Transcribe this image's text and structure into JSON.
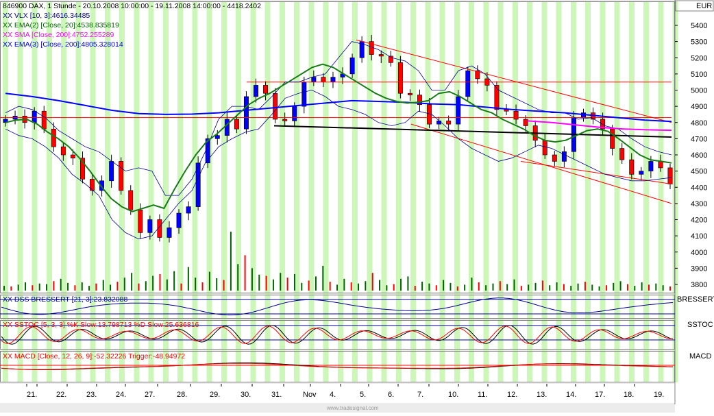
{
  "chart_data": {
    "type": "candlestick",
    "header": "846900  DAX, 1 Stunde - 20.10.2008 10:00:00 - 19.11.2008 14:00:00 - 4418.2402",
    "currency": "EUR",
    "ylim": [
      3750,
      5500
    ],
    "y_ticks": [
      5400,
      5300,
      5200,
      5100,
      5000,
      4900,
      4800,
      4700,
      4600,
      4500,
      4400,
      4300,
      4200,
      4100,
      4000,
      3900,
      3800
    ],
    "x_labels": [
      "21.",
      "22.",
      "23.",
      "24.",
      "27.",
      "28.",
      "29.",
      "30.",
      "31.",
      "Nov",
      "4.",
      "5.",
      "6.",
      "7.",
      "10.",
      "11.",
      "12.",
      "13.",
      "14.",
      "17.",
      "18.",
      "19."
    ],
    "legend": [
      {
        "text": "XX VLX [10, 3]:4616.34485",
        "color": "#00008b"
      },
      {
        "text": "XX EMA(2) [Close, 20]:4538.835819",
        "color": "#006400"
      },
      {
        "text": "XX SMA [Close, 200]:4752.255289",
        "color": "#ff00ff"
      },
      {
        "text": "XX EMA(3) [Close, 200]:4805.328014",
        "color": "#0000ff"
      }
    ],
    "closes": [
      4820,
      4840,
      4800,
      4870,
      4760,
      4650,
      4600,
      4580,
      4450,
      4380,
      4440,
      4560,
      4380,
      4260,
      4120,
      4200,
      4090,
      4150,
      4240,
      4280,
      4550,
      4700,
      4720,
      4820,
      4760,
      4960,
      5030,
      4980,
      4820,
      4810,
      4900,
      5050,
      5080,
      5050,
      5080,
      5100,
      5200,
      5300,
      5220,
      5210,
      5170,
      4980,
      4970,
      4910,
      4790,
      4810,
      4790,
      4960,
      5120,
      5070,
      5030,
      4880,
      4870,
      4820,
      4780,
      4690,
      4600,
      4560,
      4620,
      4830,
      4860,
      4820,
      4760,
      4640,
      4570,
      4480,
      4500,
      4560,
      4520,
      4420
    ],
    "ema20": [
      4800,
      4815,
      4820,
      4790,
      4740,
      4700,
      4650,
      4580,
      4500,
      4410,
      4330,
      4280,
      4250,
      4270,
      4290,
      4270,
      4390,
      4500,
      4600,
      4680,
      4730,
      4790,
      4850,
      4910,
      4950,
      4980,
      5020,
      5060,
      5100,
      5140,
      5160,
      5140,
      5100,
      5060,
      5020,
      4980,
      4950,
      4930,
      4920,
      4925,
      4935,
      4980,
      4990,
      4960,
      4920,
      4880,
      4860,
      4820,
      4790,
      4760,
      4720,
      4690,
      4680,
      4690,
      4720,
      4750,
      4760,
      4745,
      4700,
      4650,
      4600,
      4570,
      4560,
      4550
    ],
    "ema200": [
      4980,
      4960,
      4935,
      4905,
      4875,
      4855,
      4850,
      4852,
      4860,
      4875,
      4890,
      4905,
      4920,
      4935,
      4930,
      4925,
      4915,
      4910,
      4895,
      4880,
      4870,
      4860,
      4845,
      4830,
      4815,
      4806
    ],
    "sma200": [
      4810,
      4800,
      4785,
      4770,
      4760,
      4755,
      4752
    ],
    "volume_max": 100,
    "volumes": [
      8,
      7,
      10,
      14,
      9,
      12,
      11,
      16,
      20,
      13,
      9,
      14,
      8,
      12,
      18,
      10,
      15,
      22,
      30,
      12,
      16,
      25,
      28,
      19,
      33,
      12,
      40,
      22,
      14,
      32,
      21,
      18,
      100,
      45,
      60,
      38,
      27,
      25,
      19,
      30,
      22,
      28,
      13,
      17,
      24,
      42,
      15,
      10,
      20,
      14,
      12,
      16,
      30,
      18,
      9,
      11,
      20,
      24,
      8,
      15,
      12,
      9,
      18,
      13,
      7,
      10,
      22,
      14,
      9,
      12,
      16,
      11,
      19,
      8,
      10,
      13,
      17,
      9,
      14,
      11,
      8,
      12,
      15,
      10,
      7,
      9,
      13,
      16,
      11,
      8,
      14,
      10,
      12,
      9,
      7
    ],
    "indicators": [
      {
        "name": "DSS BRESSERT",
        "legend": "XX DSS BRESSERT [21, 3]:23.832088",
        "label": "BRESSERT",
        "color": "#00008b"
      },
      {
        "name": "SSTOC",
        "legend": "XX SSTOC [5, 3, 3] %K Slow:13.798713 %D Slow:25.636816",
        "label": "SSTOC",
        "color": "#ff0000"
      },
      {
        "name": "MACD",
        "legend": "XX MACD [Close, 12, 26, 9]:-52.32226  Trigger:-48.94972",
        "label": "MACD",
        "color": "#ff0000"
      }
    ],
    "grid": false
  },
  "watermark": "www.tradesignal.com"
}
